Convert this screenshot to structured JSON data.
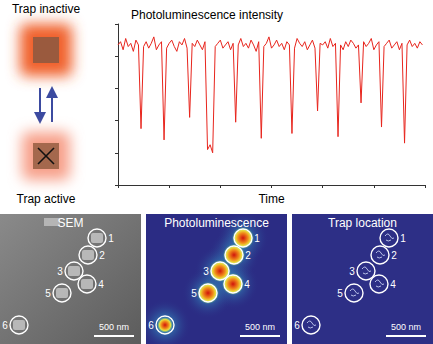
{
  "schematic": {
    "top_label": "Trap inactive",
    "bottom_label": "Trap active"
  },
  "chart_data": {
    "type": "line",
    "title": "Photoluminescence intensity",
    "xlabel": "Time",
    "x": [
      0,
      1,
      2,
      3,
      4,
      5,
      6,
      7,
      8,
      9,
      10,
      11,
      12,
      13,
      14,
      15,
      16,
      17,
      18,
      19,
      20,
      21,
      22,
      23,
      24,
      25,
      26,
      27,
      28,
      29,
      30,
      31,
      32,
      33,
      34,
      35,
      36,
      37,
      38,
      39,
      40,
      41,
      42,
      43,
      44,
      45,
      46,
      47,
      48,
      49,
      50,
      51,
      52,
      53,
      54,
      55,
      56,
      57,
      58,
      59,
      60,
      61,
      62,
      63,
      64,
      65,
      66,
      67,
      68,
      69,
      70,
      71,
      72,
      73,
      74,
      75,
      76,
      77,
      78,
      79,
      80,
      81,
      82,
      83,
      84,
      85,
      86,
      87,
      88,
      89,
      90,
      91,
      92,
      93,
      94,
      95,
      96,
      97,
      98,
      99,
      100,
      101,
      102,
      103,
      104,
      105,
      106,
      107,
      108,
      109,
      110,
      111,
      112,
      113,
      114,
      115,
      116,
      117,
      118,
      119
    ],
    "values": [
      8.7,
      8.9,
      8.4,
      9.1,
      8.6,
      8.8,
      8.3,
      9.0,
      8.7,
      3.5,
      8.6,
      8.9,
      8.5,
      8.8,
      9.2,
      8.4,
      8.7,
      8.9,
      2.8,
      8.5,
      8.8,
      9.0,
      8.6,
      8.3,
      8.9,
      8.7,
      9.1,
      8.5,
      4.2,
      8.8,
      8.6,
      9.0,
      8.7,
      8.4,
      8.9,
      2.2,
      2.5,
      2.0,
      8.6,
      8.8,
      9.0,
      8.5,
      8.7,
      8.9,
      8.4,
      8.8,
      3.9,
      8.7,
      9.1,
      8.6,
      8.8,
      8.5,
      9.0,
      8.7,
      8.3,
      8.9,
      2.9,
      8.6,
      8.8,
      9.2,
      8.5,
      8.7,
      9.0,
      8.6,
      8.8,
      8.4,
      8.9,
      8.7,
      3.2,
      8.5,
      9.1,
      8.8,
      8.6,
      8.9,
      8.4,
      8.7,
      9.0,
      8.5,
      4.6,
      8.8,
      8.7,
      8.9,
      8.5,
      9.1,
      8.6,
      8.8,
      3.0,
      8.7,
      8.4,
      8.9,
      8.6,
      9.0,
      8.8,
      8.5,
      8.7,
      5.1,
      8.9,
      8.6,
      8.8,
      9.1,
      8.4,
      8.7,
      8.9,
      3.6,
      8.6,
      8.8,
      9.0,
      8.5,
      8.7,
      8.9,
      8.4,
      8.8,
      2.6,
      8.7,
      9.0,
      8.6,
      8.8,
      8.5,
      8.9,
      8.7
    ],
    "xlim": [
      0,
      120
    ],
    "ylim": [
      0,
      10
    ],
    "xticks": [
      0,
      20,
      40,
      60,
      80,
      100,
      120
    ],
    "yticks": [
      0,
      2,
      4,
      6,
      8,
      10
    ],
    "tick_labels": false,
    "grid": false,
    "color": "#e8251d"
  },
  "panels": [
    {
      "title": "SEM",
      "scale_bar": "500 nm",
      "markers": [
        "1",
        "2",
        "3",
        "4",
        "5",
        "6"
      ]
    },
    {
      "title": "Photoluminescence",
      "scale_bar": "500 nm",
      "markers": [
        "1",
        "2",
        "3",
        "4",
        "5",
        "6"
      ]
    },
    {
      "title": "Trap location",
      "scale_bar": "500 nm",
      "markers": [
        "1",
        "2",
        "3",
        "4",
        "5",
        "6"
      ]
    }
  ]
}
